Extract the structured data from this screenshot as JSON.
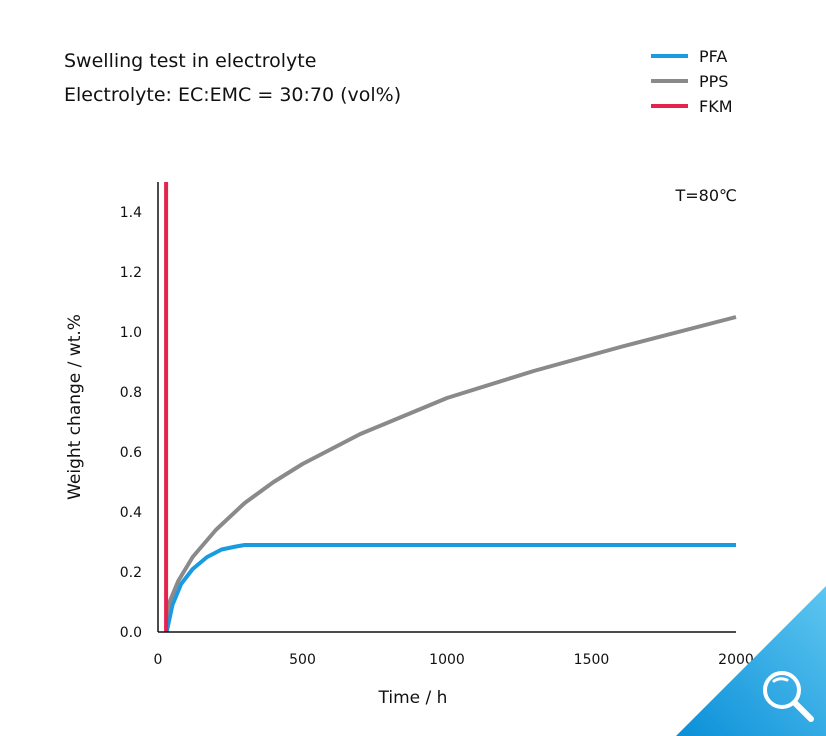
{
  "chart_data": {
    "type": "line",
    "title": [
      "Swelling test in electrolyte",
      "Electrolyte: EC:EMC = 30:70 (vol%)"
    ],
    "annotation": "T=80℃",
    "xlabel": "Time / h",
    "ylabel": "Weight change / wt.%",
    "xlim": [
      0,
      2000
    ],
    "ylim": [
      0,
      1.5
    ],
    "xticks": [
      0,
      500,
      1000,
      1500,
      2000
    ],
    "xtick_labels": [
      "0",
      "500",
      "1000",
      "1500",
      "2000"
    ],
    "yticks": [
      0,
      0.2,
      0.4,
      0.6,
      0.8,
      1.0,
      1.2,
      1.4
    ],
    "ytick_labels": [
      "0.0",
      "0.2",
      "0.4",
      "0.6",
      "0.8",
      "1.0",
      "1.2",
      "1.4"
    ],
    "legend_placement": "top-right",
    "series": [
      {
        "name": "PFA",
        "color": "#1a9ae0",
        "x": [
          30,
          50,
          80,
          120,
          170,
          220,
          270,
          300,
          500,
          1000,
          1500,
          2000
        ],
        "y": [
          0,
          0.09,
          0.16,
          0.21,
          0.25,
          0.275,
          0.285,
          0.29,
          0.29,
          0.29,
          0.29,
          0.29
        ]
      },
      {
        "name": "PPS",
        "color": "#8a8a8a",
        "x": [
          28,
          40,
          70,
          120,
          200,
          300,
          400,
          500,
          700,
          1000,
          1300,
          1600,
          2000
        ],
        "y": [
          0.05,
          0.1,
          0.17,
          0.25,
          0.34,
          0.43,
          0.5,
          0.56,
          0.66,
          0.78,
          0.87,
          0.95,
          1.05
        ]
      },
      {
        "name": "FKM",
        "color": "#e4234f",
        "x": [
          28,
          28
        ],
        "y": [
          0,
          1.5
        ]
      }
    ]
  }
}
